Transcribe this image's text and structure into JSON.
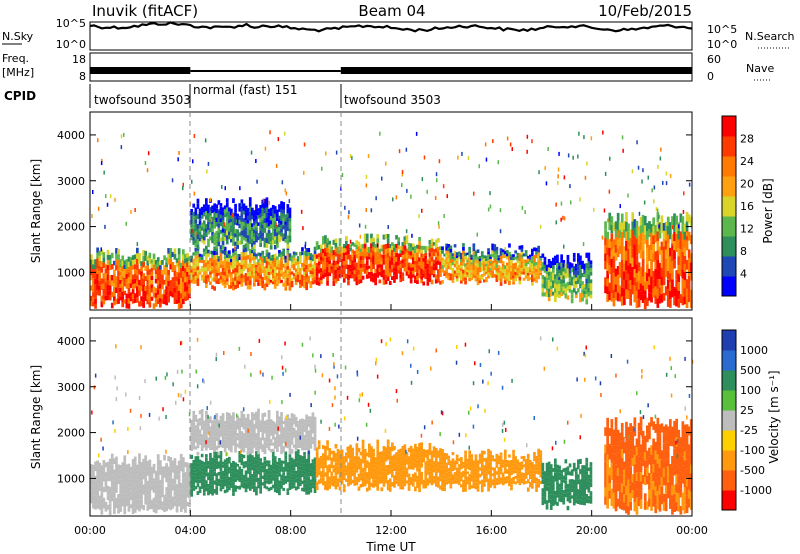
{
  "header": {
    "station": "Inuvik (fitACF)",
    "beam": "Beam 04",
    "date": "10/Feb/2015"
  },
  "noise_panel": {
    "left_label": "N.Sky",
    "right_label": "N.Search",
    "left_ticks": [
      "10^5",
      "10^0"
    ],
    "right_ticks": [
      "10^5",
      "10^0"
    ]
  },
  "freq_panel": {
    "left_label_top": "Freq.",
    "left_label_bottom": "[MHz]",
    "right_label": "Nave",
    "left_ticks": [
      "18",
      "8"
    ],
    "right_ticks": [
      "60",
      "0"
    ]
  },
  "cpid": {
    "label": "CPID",
    "segments": [
      {
        "name": "twofsound 3503",
        "start_h": 0,
        "end_h": 4
      },
      {
        "name": "normal (fast) 151",
        "start_h": 4,
        "end_h": 10
      },
      {
        "name": "twofsound 3503",
        "start_h": 10,
        "end_h": 24
      }
    ]
  },
  "power_colorbar": {
    "title": "Power [dB]",
    "ticks": [
      "28",
      "24",
      "20",
      "16",
      "12",
      "8",
      "4"
    ],
    "colors": [
      "#0000ff",
      "#1f47b5",
      "#2f8f5a",
      "#5cb84c",
      "#d9d42a",
      "#ffa010",
      "#ff7a00",
      "#ff3a00",
      "#ff0000"
    ]
  },
  "velocity_colorbar": {
    "title": "Velocity [m s⁻¹]",
    "ticks": [
      "1000",
      "500",
      "100",
      "25",
      "-25",
      "-100",
      "-500",
      "-1000"
    ],
    "colors": [
      "#1f3fb0",
      "#2a6bd0",
      "#2e8f5c",
      "#58c03c",
      "#bdbdbd",
      "#ffd000",
      "#ff9a10",
      "#ff6010",
      "#ff0000"
    ]
  },
  "chart_data": [
    {
      "type": "heatmap",
      "name": "power",
      "ylabel": "Slant Range [km]",
      "xlabel": "Time UT",
      "xlim": [
        0,
        24
      ],
      "ylim": [
        180,
        4500
      ],
      "yticks": [
        "1000",
        "2000",
        "3000",
        "4000"
      ],
      "xticks": [
        "00:00",
        "04:00",
        "08:00",
        "12:00",
        "16:00",
        "20:00",
        "00:00"
      ],
      "colorbar": "Power [dB]",
      "regions": [
        {
          "t": [
            0,
            4
          ],
          "range": [
            300,
            1400
          ],
          "value": 26
        },
        {
          "t": [
            4,
            9
          ],
          "range": [
            700,
            1500
          ],
          "value": 22
        },
        {
          "t": [
            4,
            8
          ],
          "range": [
            1600,
            2500
          ],
          "value": 10
        },
        {
          "t": [
            9,
            14
          ],
          "range": [
            800,
            1700
          ],
          "value": 27
        },
        {
          "t": [
            14,
            18
          ],
          "range": [
            800,
            1500
          ],
          "value": 20
        },
        {
          "t": [
            18,
            20
          ],
          "range": [
            400,
            1300
          ],
          "value": 14
        },
        {
          "t": [
            20.5,
            24
          ],
          "range": [
            300,
            2200
          ],
          "value": 26
        }
      ]
    },
    {
      "type": "heatmap",
      "name": "velocity",
      "ylabel": "Slant Range [km]",
      "xlabel": "Time UT",
      "xlim": [
        0,
        24
      ],
      "ylim": [
        180,
        4500
      ],
      "yticks": [
        "1000",
        "2000",
        "3000",
        "4000"
      ],
      "xticks": [
        "00:00",
        "04:00",
        "08:00",
        "12:00",
        "16:00",
        "20:00",
        "00:00"
      ],
      "colorbar": "Velocity [m s⁻¹]",
      "regions": [
        {
          "t": [
            0,
            4
          ],
          "range": [
            300,
            1400
          ],
          "value": 0
        },
        {
          "t": [
            4,
            9
          ],
          "range": [
            700,
            1500
          ],
          "value": 200
        },
        {
          "t": [
            4,
            9
          ],
          "range": [
            1600,
            2400
          ],
          "value": 10
        },
        {
          "t": [
            9,
            14
          ],
          "range": [
            800,
            1700
          ],
          "value": -150
        },
        {
          "t": [
            14,
            18
          ],
          "range": [
            800,
            1500
          ],
          "value": -200
        },
        {
          "t": [
            18,
            20
          ],
          "range": [
            400,
            1300
          ],
          "value": 100
        },
        {
          "t": [
            20.5,
            24
          ],
          "range": [
            300,
            2200
          ],
          "value": -300
        }
      ]
    }
  ]
}
